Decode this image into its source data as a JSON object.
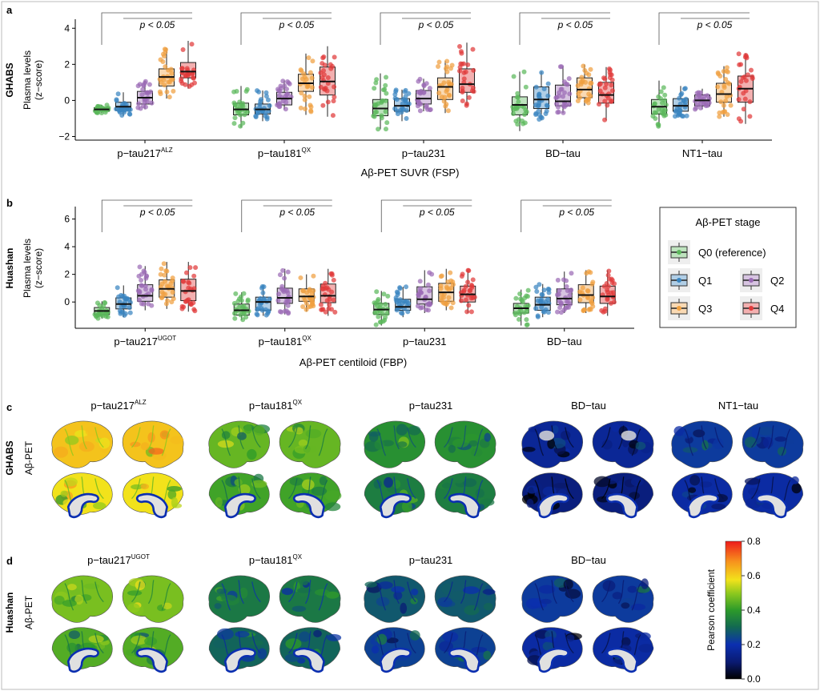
{
  "panels": {
    "a": {
      "label": "a",
      "cohort": "GHABS",
      "ylabel1": "Plasma levels",
      "ylabel2": "(z−score)",
      "xlabel": "Aβ-PET SUVR (FSP)",
      "sig_label": "p < 0.05",
      "yticks": [
        "4",
        "2",
        "0",
        "−2"
      ]
    },
    "b": {
      "label": "b",
      "cohort": "Huashan",
      "ylabel1": "Plasma levels",
      "ylabel2": "(z−score)",
      "xlabel": "Aβ-PET centiloid (FBP)",
      "sig_label": "p < 0.05",
      "yticks": [
        "6",
        "4",
        "2",
        "0"
      ]
    },
    "c": {
      "label": "c",
      "cohort": "GHABS",
      "measure": "Aβ-PET",
      "titles": [
        {
          "base": "p−tau217",
          "sup": "ALZ"
        },
        {
          "base": "p−tau181",
          "sup": "QX"
        },
        {
          "base": "p−tau231",
          "sup": ""
        },
        {
          "base": "BD−tau",
          "sup": ""
        },
        {
          "base": "NT1−tau",
          "sup": ""
        }
      ],
      "levels": [
        0.62,
        0.46,
        0.38,
        0.16,
        0.22
      ]
    },
    "d": {
      "label": "d",
      "cohort": "Huashan",
      "measure": "Aβ-PET",
      "titles": [
        {
          "base": "p−tau217",
          "sup": "UGOT"
        },
        {
          "base": "p−tau181",
          "sup": "QX"
        },
        {
          "base": "p−tau231",
          "sup": ""
        },
        {
          "base": "BD−tau",
          "sup": ""
        }
      ],
      "levels": [
        0.48,
        0.33,
        0.27,
        0.22
      ]
    }
  },
  "legend": {
    "title": "Aβ-PET stage",
    "items": [
      {
        "label": "Q0 (reference)",
        "color": "#5cb85c"
      },
      {
        "label": "Q1",
        "color": "#3a85c0"
      },
      {
        "label": "Q2",
        "color": "#9b6bb5"
      },
      {
        "label": "Q3",
        "color": "#f0a040"
      },
      {
        "label": "Q4",
        "color": "#e03a3a"
      }
    ]
  },
  "colorbar": {
    "title": "Pearson coefficient",
    "ticks": [
      "0.8",
      "0.6",
      "0.4",
      "0.2",
      "0.0"
    ],
    "range": [
      0.0,
      0.8
    ]
  },
  "chart_data": [
    {
      "type": "box",
      "title": "",
      "xlabel": "Aβ-PET SUVR (FSP)",
      "ylabel": "Plasma levels (z−score)",
      "ylim": [
        -2.2,
        4.5
      ],
      "categories": [
        {
          "base": "p−tau217",
          "sup": "ALZ"
        },
        {
          "base": "p−tau181",
          "sup": "QX"
        },
        {
          "base": "p−tau231",
          "sup": ""
        },
        {
          "base": "BD−tau",
          "sup": ""
        },
        {
          "base": "NT1−tau",
          "sup": ""
        }
      ],
      "groups": [
        "Q0",
        "Q1",
        "Q2",
        "Q3",
        "Q4"
      ],
      "boxes": [
        [
          [
            -0.7,
            -0.6,
            -0.5,
            -0.4,
            -0.25
          ],
          [
            -0.85,
            -0.55,
            -0.35,
            -0.1,
            0.45
          ],
          [
            -0.5,
            -0.2,
            0.15,
            0.5,
            1.1
          ],
          [
            0.1,
            0.8,
            1.3,
            1.75,
            2.9
          ],
          [
            0.65,
            1.25,
            1.6,
            2.1,
            3.3
          ]
        ],
        [
          [
            -1.5,
            -0.8,
            -0.5,
            -0.15,
            0.8
          ],
          [
            -1.15,
            -0.75,
            -0.5,
            -0.2,
            0.55
          ],
          [
            -0.5,
            -0.25,
            0.1,
            0.45,
            1.1
          ],
          [
            -0.8,
            0.5,
            0.95,
            1.45,
            2.6
          ],
          [
            -0.9,
            0.3,
            1.05,
            1.85,
            3.0
          ]
        ],
        [
          [
            -1.6,
            -0.85,
            -0.45,
            0.05,
            1.5
          ],
          [
            -1.15,
            -0.6,
            -0.3,
            0.1,
            0.6
          ],
          [
            -0.6,
            -0.2,
            0.1,
            0.55,
            1.2
          ],
          [
            -0.7,
            0.05,
            0.75,
            1.25,
            2.2
          ],
          [
            -0.3,
            0.45,
            0.9,
            1.75,
            3.2
          ]
        ],
        [
          [
            -1.7,
            -0.8,
            -0.25,
            0.2,
            1.6
          ],
          [
            -1.1,
            -0.45,
            0.05,
            0.75,
            1.6
          ],
          [
            -0.7,
            -0.3,
            -0.05,
            0.85,
            1.9
          ],
          [
            -0.3,
            0.15,
            0.6,
            1.25,
            2.0
          ],
          [
            -1.1,
            -0.15,
            0.3,
            1.0,
            1.85
          ]
        ],
        [
          [
            -1.5,
            -0.75,
            -0.35,
            0.05,
            1.1
          ],
          [
            -0.9,
            -0.6,
            -0.3,
            0.1,
            0.8
          ],
          [
            -0.5,
            -0.3,
            0.0,
            0.3,
            0.65
          ],
          [
            -0.9,
            -0.1,
            0.35,
            0.95,
            1.9
          ],
          [
            -1.3,
            -0.1,
            0.65,
            1.35,
            2.6
          ]
        ]
      ]
    },
    {
      "type": "box",
      "title": "",
      "xlabel": "Aβ-PET centiloid (FBP)",
      "ylabel": "Plasma levels (z−score)",
      "ylim": [
        -1.9,
        6.9
      ],
      "categories": [
        {
          "base": "p−tau217",
          "sup": "UGOT"
        },
        {
          "base": "p−tau181",
          "sup": "QX"
        },
        {
          "base": "p−tau231",
          "sup": ""
        },
        {
          "base": "BD−tau",
          "sup": ""
        }
      ],
      "groups": [
        "Q0",
        "Q1",
        "Q2",
        "Q3",
        "Q4"
      ],
      "boxes": [
        [
          [
            -1.2,
            -0.9,
            -0.65,
            -0.4,
            0.05
          ],
          [
            -1.1,
            -0.5,
            -0.15,
            0.3,
            1.2
          ],
          [
            -0.6,
            0.05,
            0.45,
            1.25,
            2.6
          ],
          [
            -0.5,
            0.35,
            0.95,
            1.6,
            2.9
          ],
          [
            -0.7,
            0.1,
            0.8,
            1.65,
            2.9
          ]
        ],
        [
          [
            -1.3,
            -0.95,
            -0.6,
            -0.15,
            0.7
          ],
          [
            -1.0,
            -0.6,
            0.0,
            0.35,
            1.2
          ],
          [
            -0.9,
            -0.1,
            0.3,
            1.0,
            2.4
          ],
          [
            -0.7,
            0.05,
            0.4,
            0.95,
            2.0
          ],
          [
            -1.0,
            -0.05,
            0.45,
            1.3,
            2.4
          ]
        ],
        [
          [
            -1.7,
            -0.9,
            -0.55,
            -0.1,
            0.8
          ],
          [
            -1.1,
            -0.6,
            -0.35,
            0.2,
            1.1
          ],
          [
            -0.8,
            -0.15,
            0.2,
            1.1,
            2.3
          ],
          [
            -0.6,
            0.05,
            0.7,
            1.35,
            2.4
          ],
          [
            -0.8,
            0.0,
            0.55,
            1.15,
            2.3
          ]
        ],
        [
          [
            -1.7,
            -0.8,
            -0.45,
            -0.1,
            0.9
          ],
          [
            -1.1,
            -0.6,
            -0.2,
            0.35,
            1.3
          ],
          [
            -0.8,
            -0.2,
            0.25,
            0.95,
            2.2
          ],
          [
            -0.8,
            -0.05,
            0.5,
            1.25,
            2.3
          ],
          [
            -1.0,
            -0.1,
            0.4,
            1.15,
            2.3
          ]
        ]
      ]
    }
  ]
}
